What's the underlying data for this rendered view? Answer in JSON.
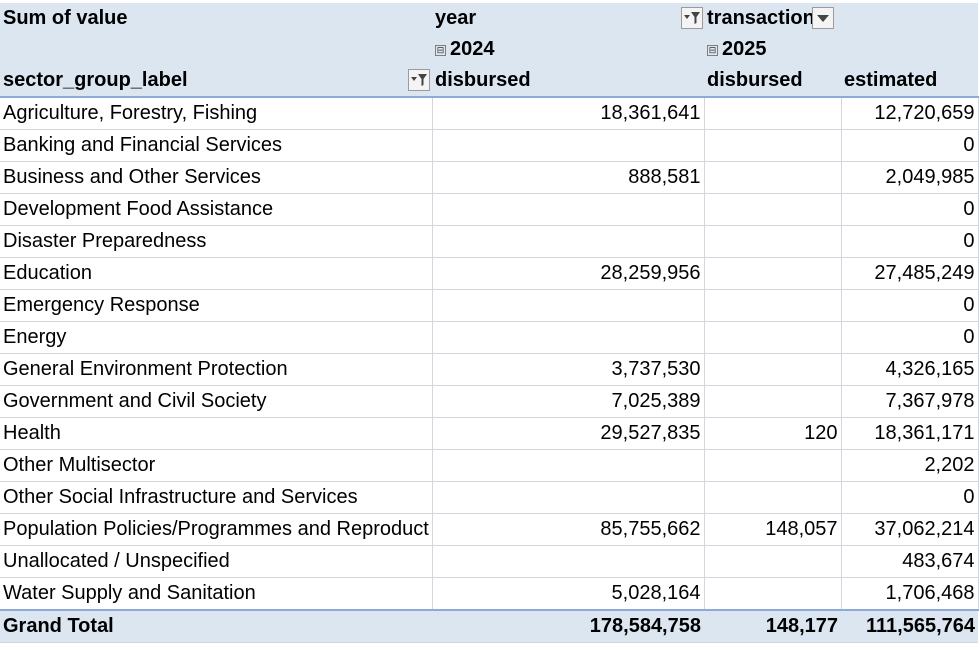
{
  "pivot": {
    "value_label": "Sum of value",
    "col_field_1": "year",
    "col_field_2": "transaction",
    "row_field": "sector_group_label",
    "year_2024": "2024",
    "year_2025": "2025",
    "collapse_glyph": "⊟",
    "sub_headers": [
      "disbursed",
      "disbursed",
      "estimated"
    ],
    "rows": [
      {
        "label": "Agriculture, Forestry, Fishing",
        "v2024_disbursed": "18,361,641",
        "v2025_disbursed": "",
        "v2025_estimated": "12,720,659"
      },
      {
        "label": "Banking and Financial Services",
        "v2024_disbursed": "",
        "v2025_disbursed": "",
        "v2025_estimated": "0"
      },
      {
        "label": "Business and Other Services",
        "v2024_disbursed": "888,581",
        "v2025_disbursed": "",
        "v2025_estimated": "2,049,985"
      },
      {
        "label": "Development Food Assistance",
        "v2024_disbursed": "",
        "v2025_disbursed": "",
        "v2025_estimated": "0"
      },
      {
        "label": "Disaster Preparedness",
        "v2024_disbursed": "",
        "v2025_disbursed": "",
        "v2025_estimated": "0"
      },
      {
        "label": "Education",
        "v2024_disbursed": "28,259,956",
        "v2025_disbursed": "",
        "v2025_estimated": "27,485,249"
      },
      {
        "label": "Emergency Response",
        "v2024_disbursed": "",
        "v2025_disbursed": "",
        "v2025_estimated": "0"
      },
      {
        "label": "Energy",
        "v2024_disbursed": "",
        "v2025_disbursed": "",
        "v2025_estimated": "0"
      },
      {
        "label": "General Environment Protection",
        "v2024_disbursed": "3,737,530",
        "v2025_disbursed": "",
        "v2025_estimated": "4,326,165"
      },
      {
        "label": "Government and Civil Society",
        "v2024_disbursed": "7,025,389",
        "v2025_disbursed": "",
        "v2025_estimated": "7,367,978"
      },
      {
        "label": "Health",
        "v2024_disbursed": "29,527,835",
        "v2025_disbursed": "120",
        "v2025_estimated": "18,361,171"
      },
      {
        "label": "Other Multisector",
        "v2024_disbursed": "",
        "v2025_disbursed": "",
        "v2025_estimated": "2,202"
      },
      {
        "label": "Other Social Infrastructure and Services",
        "v2024_disbursed": "",
        "v2025_disbursed": "",
        "v2025_estimated": "0"
      },
      {
        "label": "Population Policies/Programmes and Reproduct",
        "v2024_disbursed": "85,755,662",
        "v2025_disbursed": "148,057",
        "v2025_estimated": "37,062,214"
      },
      {
        "label": "Unallocated / Unspecified",
        "v2024_disbursed": "",
        "v2025_disbursed": "",
        "v2025_estimated": "483,674"
      },
      {
        "label": "Water Supply and Sanitation",
        "v2024_disbursed": "5,028,164",
        "v2025_disbursed": "",
        "v2025_estimated": "1,706,468"
      }
    ],
    "grand_total": {
      "label": "Grand Total",
      "v2024_disbursed": "178,584,758",
      "v2025_disbursed": "148,177",
      "v2025_estimated": "111,565,764"
    }
  },
  "colors": {
    "header_bg": "#dce6f1",
    "header_rule": "#8eaadb",
    "grid": "#d0d7e1"
  },
  "icons": {
    "filter_active": "funnel-filter-icon",
    "dropdown": "dropdown-arrow-icon",
    "collapse": "collapse-minus-icon"
  }
}
